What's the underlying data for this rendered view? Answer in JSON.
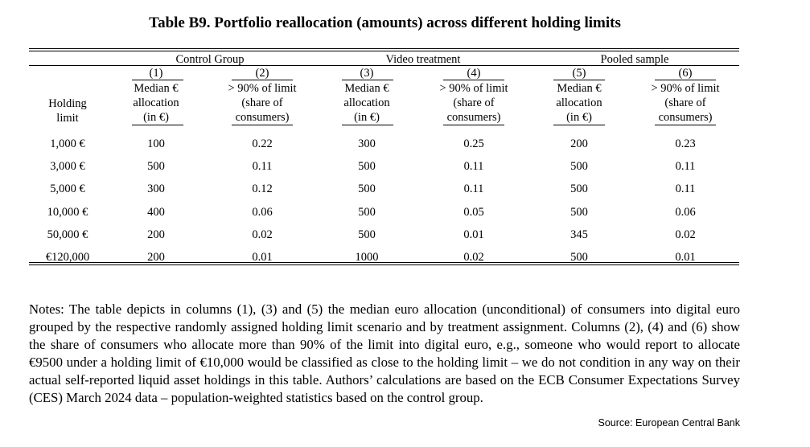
{
  "title": "Table B9. Portfolio reallocation (amounts) across different holding limits",
  "table": {
    "groups": [
      "Control Group",
      "Video treatment",
      "Pooled sample"
    ],
    "col_numbers": [
      "(1)",
      "(2)",
      "(3)",
      "(4)",
      "(5)",
      "(6)"
    ],
    "row_header": [
      "Holding",
      "limit"
    ],
    "col_headers": [
      [
        "Median €",
        "allocation",
        "(in €)"
      ],
      [
        "> 90% of limit",
        "(share of",
        "consumers)"
      ],
      [
        "Median €",
        "allocation",
        "(in €)"
      ],
      [
        "> 90% of limit",
        "(share of",
        "consumers)"
      ],
      [
        "Median €",
        "allocation",
        "(in €)"
      ],
      [
        "> 90% of limit",
        "(share of",
        "consumers)"
      ]
    ],
    "rows": [
      {
        "limit": "1,000 €",
        "values": [
          "100",
          "0.22",
          "300",
          "0.25",
          "200",
          "0.23"
        ]
      },
      {
        "limit": "3,000 €",
        "values": [
          "500",
          "0.11",
          "500",
          "0.11",
          "500",
          "0.11"
        ]
      },
      {
        "limit": "5,000 €",
        "values": [
          "300",
          "0.12",
          "500",
          "0.11",
          "500",
          "0.11"
        ]
      },
      {
        "limit": "10,000 €",
        "values": [
          "400",
          "0.06",
          "500",
          "0.05",
          "500",
          "0.06"
        ]
      },
      {
        "limit": "50,000 €",
        "values": [
          "200",
          "0.02",
          "500",
          "0.01",
          "345",
          "0.02"
        ]
      },
      {
        "limit": "€120,000",
        "values": [
          "200",
          "0.01",
          "1000",
          "0.02",
          "500",
          "0.01"
        ]
      }
    ]
  },
  "notes": "Notes: The table depicts in columns (1), (3) and (5) the median euro allocation (unconditional) of consumers into digital euro grouped by the respective randomly assigned holding limit scenario and by treatment assignment. Columns (2), (4) and (6) show the share of consumers who allocate more than 90% of the limit into digital euro, e.g., someone who would report to allocate €9500 under a holding limit of €10,000 would be classified as close to the holding limit – we do not condition in any way on their actual self-reported liquid asset holdings in this table. Authors’ calculations are based on the ECB Consumer Expectations Survey (CES) March 2024 data – population-weighted statistics based on the control group.",
  "source": "Source: European Central Bank"
}
